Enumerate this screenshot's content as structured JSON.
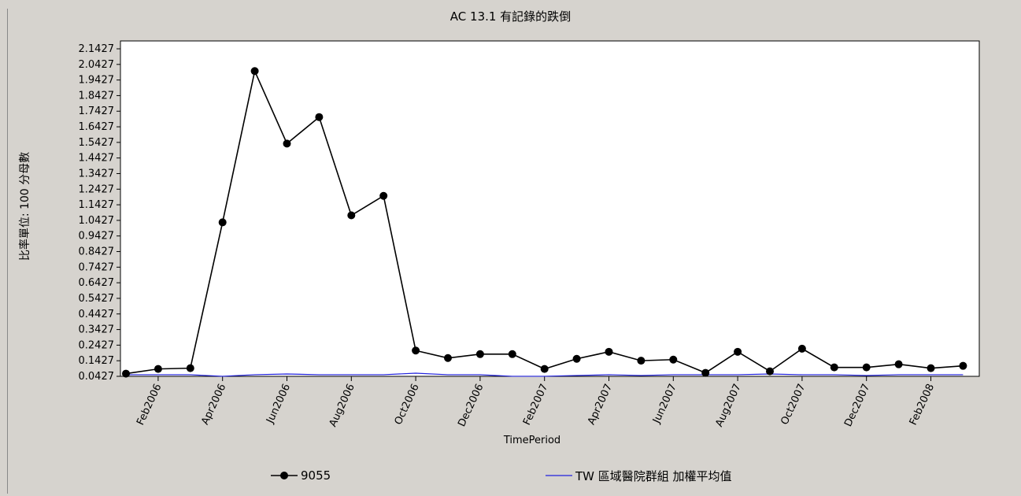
{
  "colors": {
    "background": "#d6d3ce",
    "plot_background": "#ffffff",
    "series_9055": "#000000",
    "series_tw": "#2222dd"
  },
  "chart_data": {
    "type": "line",
    "title": "AC 13.1 有記錄的跌倒",
    "xlabel": "TimePeriod",
    "ylabel": "比率單位: 100 分母數",
    "x": [
      "Jan2006",
      "Feb2006",
      "Mar2006",
      "Apr2006",
      "May2006",
      "Jun2006",
      "Jul2006",
      "Aug2006",
      "Sep2006",
      "Oct2006",
      "Nov2006",
      "Dec2006",
      "Jan2007",
      "Feb2007",
      "Mar2007",
      "Apr2007",
      "May2007",
      "Jun2007",
      "Jul2007",
      "Aug2007",
      "Sep2007",
      "Oct2007",
      "Nov2007",
      "Dec2007",
      "Jan2008",
      "Feb2008",
      "Mar2008"
    ],
    "x_tick_labels": [
      "Feb2006",
      "Apr2006",
      "Jun2006",
      "Aug2006",
      "Oct2006",
      "Dec2006",
      "Feb2007",
      "Apr2007",
      "Jun2007",
      "Aug2007",
      "Oct2007",
      "Dec2007",
      "Feb2008"
    ],
    "y_tick_labels": [
      "0.0427",
      "0.1427",
      "0.2427",
      "0.3427",
      "0.4427",
      "0.5427",
      "0.6427",
      "0.7427",
      "0.8427",
      "0.9427",
      "1.0427",
      "1.1427",
      "1.2427",
      "1.3427",
      "1.4427",
      "1.5427",
      "1.6427",
      "1.7427",
      "1.8427",
      "1.9427",
      "2.0427",
      "2.1427"
    ],
    "ylim": [
      0.0427,
      2.1427
    ],
    "grid": false,
    "legend_position": "bottom",
    "series": [
      {
        "name": "9055",
        "marker": "circle",
        "values": [
          0.06,
          0.09,
          0.095,
          1.03,
          2.0,
          1.535,
          1.705,
          1.075,
          1.2,
          0.208,
          0.16,
          0.185,
          0.185,
          0.09,
          0.155,
          0.2,
          0.143,
          0.15,
          0.065,
          0.2,
          0.075,
          0.22,
          0.1,
          0.1,
          0.12,
          0.095,
          0.11
        ]
      },
      {
        "name": "TW 區域醫院群組 加權平均值",
        "marker": "none",
        "values": [
          0.053,
          0.053,
          0.053,
          0.043,
          0.053,
          0.058,
          0.053,
          0.053,
          0.053,
          0.063,
          0.053,
          0.053,
          0.043,
          0.043,
          0.048,
          0.053,
          0.048,
          0.053,
          0.053,
          0.053,
          0.058,
          0.053,
          0.053,
          0.048,
          0.053,
          0.053,
          0.053
        ]
      }
    ]
  },
  "legend": {
    "series1_label": "9055",
    "series2_label": "TW 區域醫院群組 加權平均值"
  }
}
